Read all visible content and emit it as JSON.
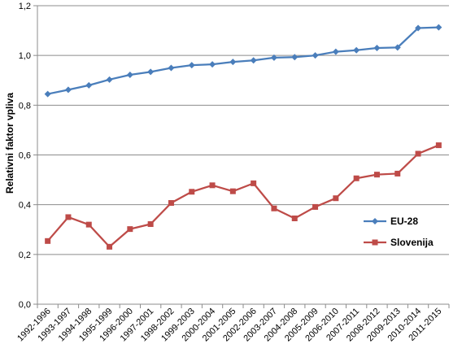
{
  "chart_data": {
    "type": "line",
    "ylabel": "Relativni faktor vpliva",
    "xlabel": "",
    "ylim": [
      0,
      1.2
    ],
    "yticks": [
      "0,0",
      "0,2",
      "0,4",
      "0,6",
      "0,8",
      "1,0",
      "1,2"
    ],
    "categories": [
      "1992-1996",
      "1993-1997",
      "1994-1998",
      "1995-1999",
      "1996-2000",
      "1997-2001",
      "1998-2002",
      "1999-2003",
      "2000-2004",
      "2001-2005",
      "2002-2006",
      "2003-2007",
      "2004-2008",
      "2005-2009",
      "2006-2010",
      "2007-2011",
      "2008-2012",
      "2009-2013",
      "2010-2014",
      "2011-2015"
    ],
    "series": [
      {
        "name": "EU-28",
        "color": "#4a7ebb",
        "marker": "diamond",
        "values": [
          0.845,
          0.862,
          0.88,
          0.903,
          0.922,
          0.934,
          0.95,
          0.961,
          0.964,
          0.974,
          0.98,
          0.991,
          0.993,
          1.0,
          1.015,
          1.021,
          1.03,
          1.032,
          1.11,
          1.113
        ]
      },
      {
        "name": "Slovenija",
        "color": "#be4b48",
        "marker": "square",
        "values": [
          0.254,
          0.35,
          0.32,
          0.231,
          0.302,
          0.322,
          0.407,
          0.452,
          0.478,
          0.454,
          0.486,
          0.385,
          0.345,
          0.391,
          0.426,
          0.506,
          0.521,
          0.525,
          0.605,
          0.639
        ]
      }
    ],
    "grid": true,
    "legend": "right"
  }
}
